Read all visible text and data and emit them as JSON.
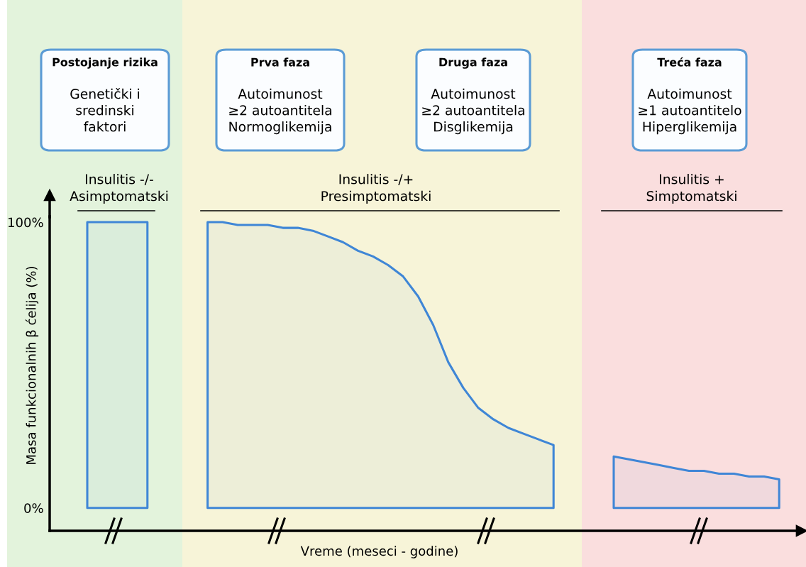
{
  "chart_data": {
    "type": "area",
    "xlabel": "Vreme (meseci - godine)",
    "ylabel": "Masa funkcionalnih β ćelija (%)",
    "categories": [
      null,
      null,
      null,
      null,
      null,
      null,
      null,
      null,
      null,
      null,
      null,
      null,
      null,
      null,
      null,
      null,
      null,
      null,
      null,
      null,
      null,
      null,
      null,
      null,
      null,
      null,
      null,
      null,
      null,
      null,
      null,
      null,
      null,
      null,
      null,
      null,
      null,
      null,
      null,
      null,
      null,
      null,
      null,
      null,
      null,
      null,
      null,
      null,
      null,
      null
    ],
    "series": [
      {
        "color": "#3f86d6",
        "values": [
          null,
          null,
          100,
          100,
          100,
          100,
          100,
          null,
          null,
          null,
          null,
          null,
          null,
          null,
          null,
          null,
          null,
          null,
          null,
          null,
          null,
          null,
          null,
          null,
          null,
          null,
          null,
          null,
          null,
          null,
          null,
          null,
          null,
          null,
          null,
          null,
          null,
          null,
          null,
          null,
          null,
          null,
          null,
          null,
          null,
          null,
          null,
          null,
          null,
          null
        ]
      },
      {
        "color": "#3f86d6",
        "values": [
          null,
          null,
          null,
          null,
          null,
          null,
          null,
          null,
          null,
          null,
          100,
          100,
          99,
          99,
          99,
          98,
          98,
          97,
          95,
          93,
          90,
          88,
          85,
          81,
          74,
          64,
          51,
          42,
          35,
          31,
          28,
          26,
          24,
          22,
          null,
          null,
          null,
          null,
          null,
          null,
          null,
          null,
          null,
          null,
          null,
          null,
          null,
          null,
          null,
          null
        ]
      },
      {
        "color": "#3f86d6",
        "values": [
          null,
          null,
          null,
          null,
          null,
          null,
          null,
          null,
          null,
          null,
          null,
          null,
          null,
          null,
          null,
          null,
          null,
          null,
          null,
          null,
          null,
          null,
          null,
          null,
          null,
          null,
          null,
          null,
          null,
          null,
          null,
          null,
          null,
          null,
          null,
          null,
          null,
          18,
          17,
          16,
          15,
          14,
          13,
          13,
          12,
          12,
          11,
          11,
          10,
          null
        ]
      }
    ],
    "ylim": [
      -8,
      102
    ],
    "yticks": [
      {
        "value": 0,
        "label": "0%"
      },
      {
        "value": 100,
        "label": "100%"
      }
    ],
    "annotations": [
      "Postojanje rizika\nGenetički i\nsredinski\nfaktori",
      "Prva faza\nAutoimunost\n≥2 autoantitela\nNormoglikemija",
      "Druga faza\nAutoimunost\n≥2 autoantitela\nDisglikemija",
      "Treća faza\nAutoimunost\n≥1 autoantitelo\nHiperglikemija",
      "Insulitis -/-\nAsimptomatski",
      "Insulitis -/+\nPresimptomatski",
      "Insulitis +\nSimptomatski"
    ]
  }
}
